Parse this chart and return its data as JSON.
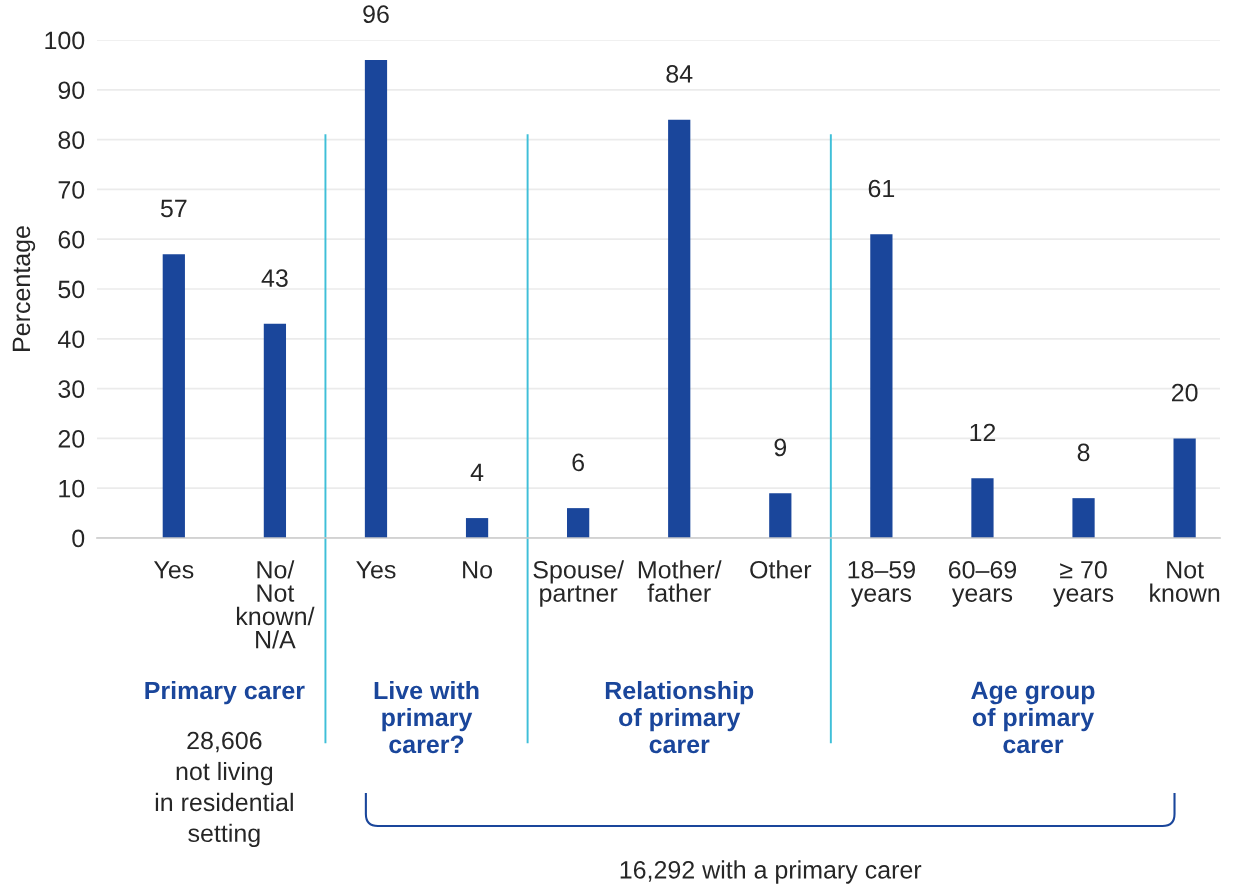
{
  "chart_data": {
    "type": "bar",
    "ylabel": "Percentage",
    "categories": [
      "Yes",
      "No/\nNot\nknown/\nN/A",
      "Yes",
      "No",
      "Spouse/\npartner",
      "Mother/\nfather",
      "Other",
      "18–59\nyears",
      "60–69\nyears",
      "≥ 70\nyears",
      "Not\nknown"
    ],
    "values": [
      57,
      43,
      96,
      4,
      6,
      84,
      9,
      61,
      12,
      8,
      20
    ],
    "color": "#1a469b",
    "ylim": [
      0,
      100
    ],
    "yticks": [
      0,
      10,
      20,
      30,
      40,
      50,
      60,
      70,
      80,
      90,
      100
    ],
    "grid": "y",
    "data_labels": true,
    "annotations": [
      "Primary carer",
      "Live with\nprimary\ncarer?",
      "Relationship\nof primary\ncarer",
      "Age group\nof primary\ncarer",
      "28,606\nnot living\nin residential\nsetting",
      "16,292 with a primary carer"
    ]
  }
}
